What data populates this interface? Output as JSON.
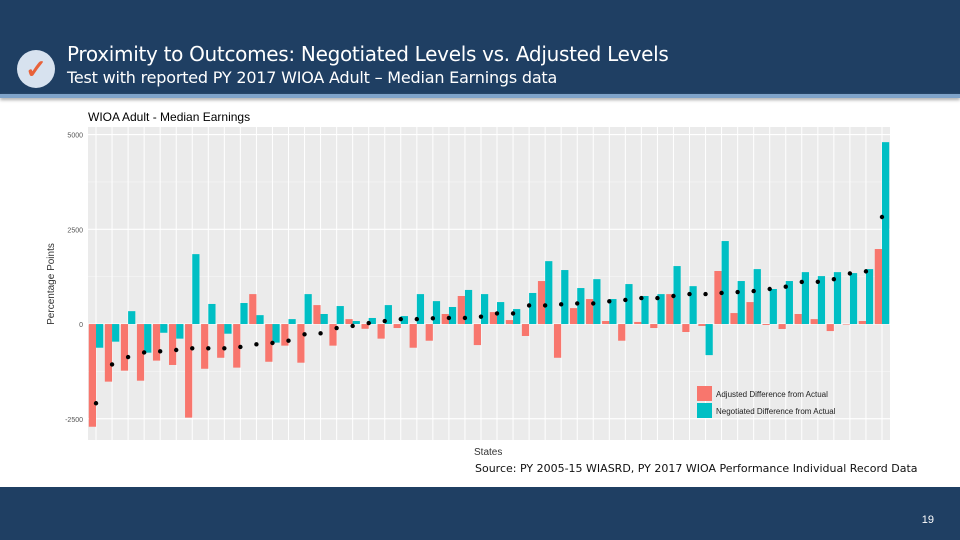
{
  "header": {
    "title": "Proximity to Outcomes: Negotiated Levels vs. Adjusted Levels",
    "subtitle": "Test with reported PY 2017 WIOA Adult – Median Earnings data",
    "icon": "checkmark-icon"
  },
  "source": "Source: PY 2005-15 WIASRD, PY 2017 WIOA Performance Individual Record Data",
  "page_number": "19",
  "colors": {
    "header": "#1f3f63",
    "adjusted": "#f8766d",
    "negotiated": "#00bfc4",
    "panel": "#ebebeb"
  },
  "chart_data": {
    "type": "bar",
    "title": "WIOA Adult - Median Earnings",
    "xlabel": "States",
    "ylabel": "Percentage Points",
    "ylim": [
      -3060,
      5200
    ],
    "yticks": [
      -2500,
      0,
      2500,
      5000
    ],
    "ytick_labels": [
      "-2500",
      "0",
      "2500",
      "5000"
    ],
    "grid": true,
    "legend_position": "bottom-right",
    "series": [
      {
        "name": "Adjusted Difference from Actual",
        "color": "#f8766d",
        "values": [
          -2710,
          -1520,
          -1230,
          -1495,
          -965,
          -1080,
          -2470,
          -1180,
          -890,
          -1150,
          790,
          -995,
          -570,
          -1020,
          500,
          -570,
          130,
          -125,
          -385,
          -105,
          -625,
          -440,
          265,
          740,
          -555,
          315,
          105,
          -315,
          1135,
          -890,
          420,
          660,
          80,
          -440,
          55,
          -105,
          790,
          -210,
          -50,
          1400,
          290,
          580,
          -25,
          -130,
          265,
          130,
          -185,
          0,
          80,
          1980
        ]
      },
      {
        "name": "Negotiated Difference from Actual",
        "color": "#00bfc4",
        "values": [
          -625,
          -465,
          340,
          -755,
          -230,
          -385,
          1845,
          530,
          -255,
          555,
          235,
          -490,
          130,
          790,
          265,
          475,
          80,
          160,
          500,
          210,
          790,
          605,
          450,
          900,
          790,
          580,
          395,
          820,
          1660,
          1425,
          950,
          1185,
          660,
          1055,
          740,
          790,
          1530,
          1000,
          -820,
          2190,
          1135,
          1450,
          925,
          1135,
          1370,
          1265,
          1370,
          1345,
          1450,
          4800
        ]
      }
    ],
    "points": [
      -2090,
      -1065,
      -870,
      -750,
      -720,
      -685,
      -640,
      -640,
      -640,
      -605,
      -535,
      -500,
      -440,
      -270,
      -245,
      -105,
      -50,
      25,
      80,
      130,
      130,
      150,
      160,
      160,
      195,
      280,
      280,
      490,
      490,
      520,
      545,
      545,
      600,
      635,
      685,
      685,
      740,
      790,
      790,
      820,
      845,
      870,
      925,
      985,
      1110,
      1115,
      1185,
      1335,
      1390,
      2825
    ]
  }
}
